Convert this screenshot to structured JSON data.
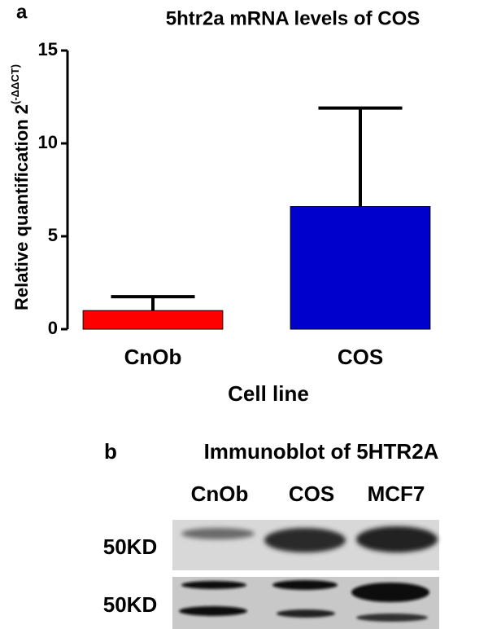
{
  "chart_data": {
    "type": "bar",
    "panel_label": "a",
    "title": "5htr2a mRNA levels of COS",
    "x_label": "Cell line",
    "y_label": "Relative quantification 2",
    "y_label_superscript": "(-ΔΔCT)",
    "categories": [
      "CnOb",
      "COS"
    ],
    "values": [
      1,
      6.6
    ],
    "errors": [
      0.75,
      5.3
    ],
    "colors": [
      "#ff0000",
      "#0000cc"
    ],
    "ylim": [
      0,
      15
    ],
    "yticks": [
      0,
      5,
      10,
      15
    ]
  },
  "immunoblot": {
    "panel_label": "b",
    "title": "Immunoblot of 5HTR2A",
    "lanes": [
      "CnOb",
      "COS",
      "MCF7"
    ],
    "rows": [
      "50KD",
      "50KD"
    ]
  }
}
